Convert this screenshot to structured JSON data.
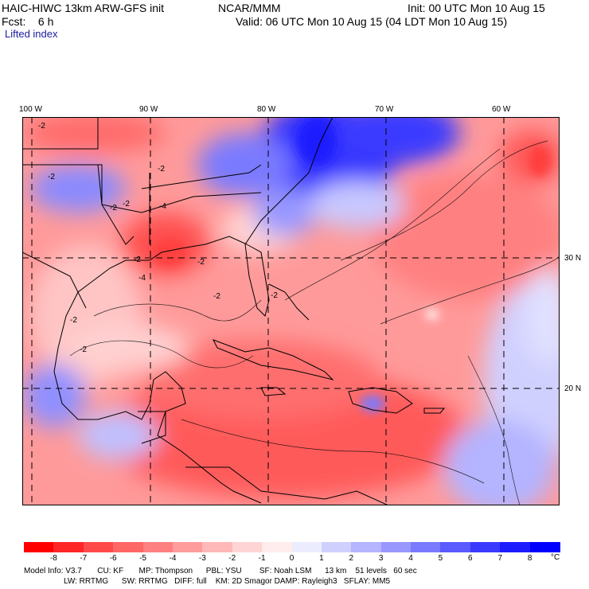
{
  "header": {
    "model": "HAIC-HIWC 13km ARW-GFS init",
    "org": "NCAR/MMM",
    "init": "Init: 00 UTC Mon 10 Aug 15",
    "fcst": "Fcst:    6 h",
    "valid": "Valid: 06 UTC Mon 10 Aug 15 (04 LDT Mon 10 Aug 15)",
    "field": "Lifted index"
  },
  "map": {
    "lon_labels": [
      "100 W",
      "90 W",
      "80 W",
      "70 W",
      "60 W"
    ],
    "lat_labels": [
      "30 N",
      "20 N"
    ],
    "contour_labels": [
      "-2",
      "-2",
      "-2",
      "-2",
      "-4",
      "-2",
      "-4",
      "-2",
      "-2",
      "-2",
      "-2",
      "-2",
      "-2"
    ]
  },
  "colorbar": {
    "ticks": [
      "-8",
      "-7",
      "-6",
      "-5",
      "-4",
      "-3",
      "-2",
      "-1",
      "0",
      "1",
      "2",
      "3",
      "4",
      "5",
      "6",
      "7",
      "8"
    ],
    "unit": "°C",
    "colors": [
      "#ff0000",
      "#ff2626",
      "#ff4a4a",
      "#ff6666",
      "#ff8080",
      "#ff9c9c",
      "#ffb8b8",
      "#ffd4d4",
      "#ffecec",
      "#ececff",
      "#d0d0ff",
      "#b4b4ff",
      "#9898ff",
      "#7a7aff",
      "#5a5aff",
      "#3a3aff",
      "#1c1cff",
      "#0000ff"
    ]
  },
  "footer": {
    "line1": "Model Info: V3.7       CU: KF       MP: Thompson      PBL: YSU        SF: Noah LSM      13 km    51 levels   60 sec",
    "line2": "                  LW: RRTMG      SW: RRTMG   DIFF: full    KM: 2D Smagor DAMP: Rayleigh3   SFLAY: MM5"
  }
}
